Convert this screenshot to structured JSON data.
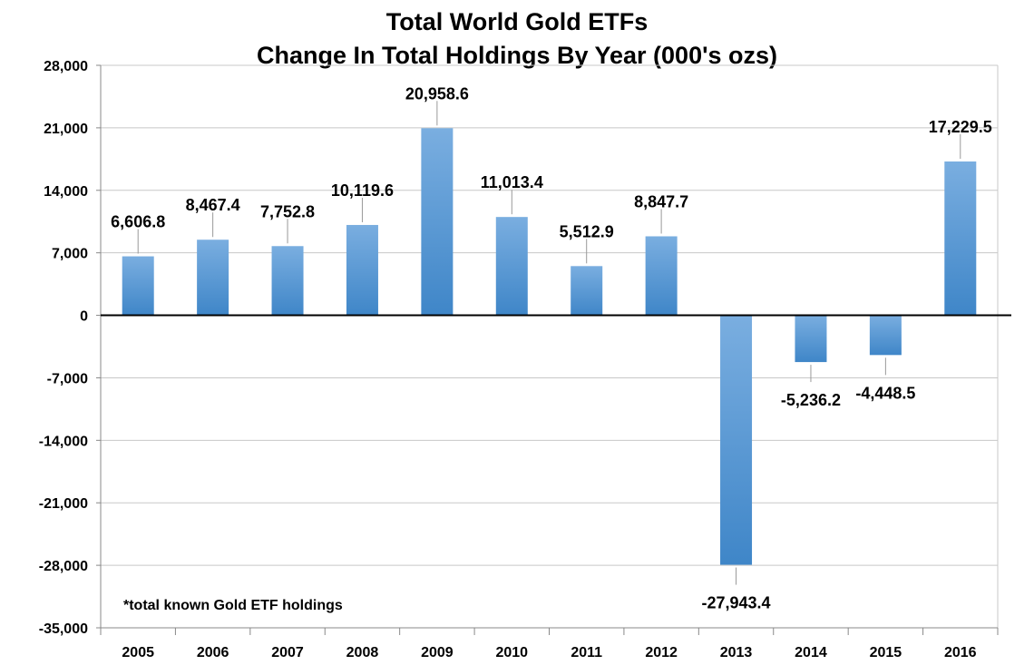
{
  "chart_data": {
    "type": "bar",
    "title": "Total World Gold ETFs",
    "subtitle": "Change In Total Holdings By Year (000's ozs)",
    "categories": [
      "2005",
      "2006",
      "2007",
      "2008",
      "2009",
      "2010",
      "2011",
      "2012",
      "2013",
      "2014",
      "2015",
      "2016"
    ],
    "values": [
      6606.8,
      8467.4,
      7752.8,
      10119.6,
      20958.6,
      11013.4,
      5512.9,
      8847.7,
      -27943.4,
      -5236.2,
      -4448.5,
      17229.5
    ],
    "value_labels": [
      "6,606.8",
      "8,467.4",
      "7,752.8",
      "10,119.6",
      "20,958.6",
      "11,013.4",
      "5,512.9",
      "8,847.7",
      "-27,943.4",
      "-5,236.2",
      "-4,448.5",
      "17,229.5"
    ],
    "ylim": [
      -35000,
      28000
    ],
    "yticks": [
      28000,
      21000,
      14000,
      7000,
      0,
      -7000,
      -14000,
      -21000,
      -28000,
      -35000
    ],
    "ytick_labels": [
      "28,000",
      "21,000",
      "14,000",
      "7,000",
      "0",
      "-7,000",
      "-14,000",
      "-21,000",
      "-28,000",
      "-35,000"
    ],
    "grid": true,
    "bar_color_top": "#7aaee0",
    "bar_color_bottom": "#3f86c8",
    "annotation": "*total known Gold ETF holdings"
  }
}
